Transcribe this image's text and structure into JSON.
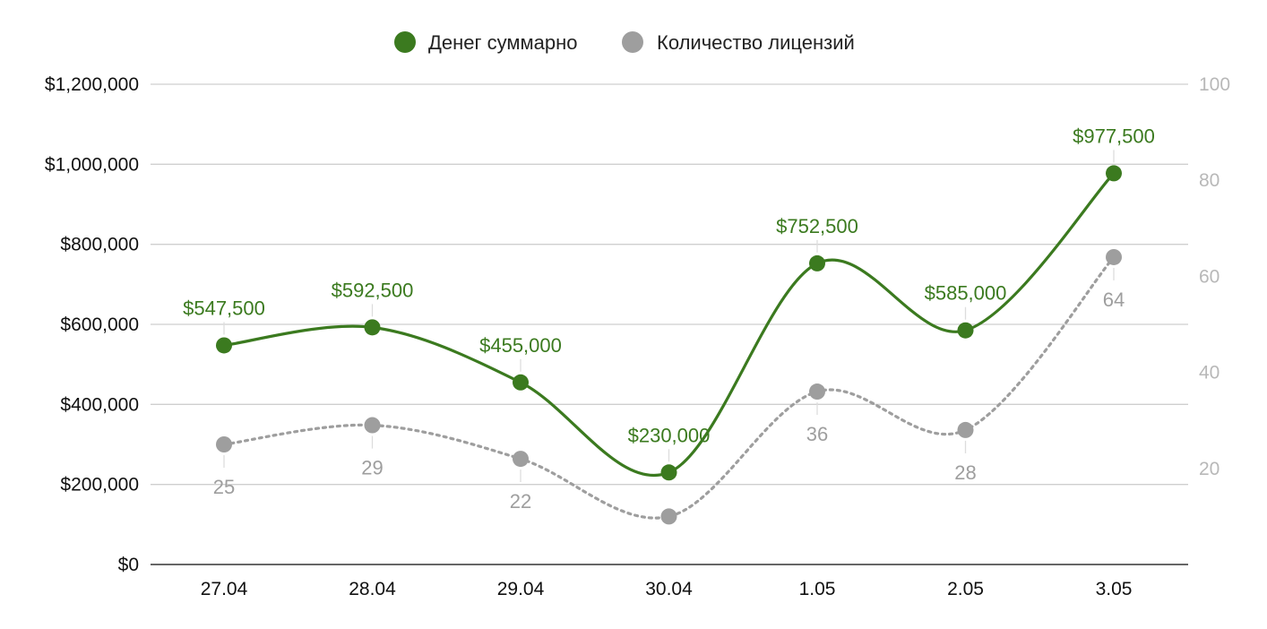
{
  "chart_data": {
    "type": "line",
    "title": "",
    "xlabel": "",
    "ylabel": "",
    "categories": [
      "27.04",
      "28.04",
      "29.04",
      "30.04",
      "1.05",
      "2.05",
      "3.05"
    ],
    "y_left": {
      "min": 0,
      "max": 1200000,
      "ticks": [
        0,
        200000,
        400000,
        600000,
        800000,
        1000000,
        1200000
      ],
      "tick_labels": [
        "$0",
        "$200,000",
        "$400,000",
        "$600,000",
        "$800,000",
        "$1,000,000",
        "$1,200,000"
      ]
    },
    "y_right": {
      "min": 0,
      "max": 100,
      "ticks": [
        20,
        40,
        60,
        80,
        100
      ],
      "tick_labels": [
        "20",
        "40",
        "60",
        "80",
        "100"
      ]
    },
    "grid": true,
    "legend_position": "top-center",
    "series": [
      {
        "name": "Денег суммарно",
        "axis": "left",
        "color": "#3b7a1f",
        "style": "solid",
        "values": [
          547500,
          592500,
          455000,
          230000,
          752500,
          585000,
          977500
        ],
        "data_labels": [
          "$547,500",
          "$592,500",
          "$455,000",
          "$230,000",
          "$752,500",
          "$585,000",
          "$977,500"
        ]
      },
      {
        "name": "Количество лицензий",
        "axis": "right",
        "color": "#9e9e9e",
        "style": "dotted",
        "values": [
          25,
          29,
          22,
          10,
          36,
          28,
          64
        ],
        "data_labels": [
          "25",
          "29",
          "22",
          "",
          "36",
          "28",
          "64"
        ]
      }
    ]
  }
}
